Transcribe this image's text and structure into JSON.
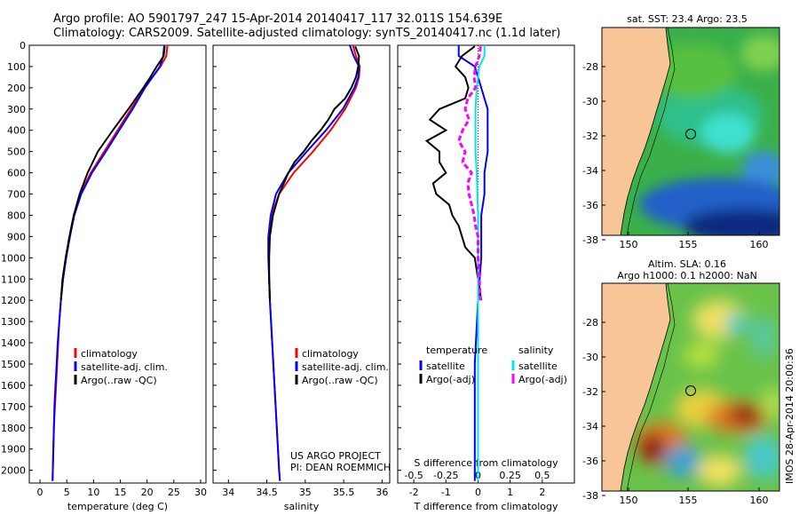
{
  "header": {
    "line1": "Argo profile: AO 5901797_247 15-Apr-2014 20140417_117 32.011S 154.639E",
    "line2": "Climatology: CARS2009. Satellite-adjusted climatology: synTS_20140417.nc (1.1d later)"
  },
  "colors": {
    "climatology": "#ff0000",
    "satellite": "#0000ff",
    "argo": "#000000",
    "sal_satellite": "#00e5ee",
    "sal_argo": "#ff00ff",
    "land": "#f8c596"
  },
  "chart_data": [
    {
      "type": "line",
      "xlabel": "temperature (deg C)",
      "xticks": [
        "0",
        "5",
        "10",
        "15",
        "20",
        "25",
        "30"
      ],
      "xlim": [
        -2,
        31
      ],
      "yticks": [
        "0",
        "100",
        "200",
        "300",
        "400",
        "500",
        "600",
        "700",
        "800",
        "900",
        "1000",
        "1100",
        "1200",
        "1300",
        "1400",
        "1500",
        "1600",
        "1700",
        "1800",
        "1900",
        "2000"
      ],
      "ylim": [
        0,
        2060
      ],
      "legend": [
        "climatology",
        "satellite-adj. clim.",
        "Argo(..raw -QC)"
      ],
      "series": [
        {
          "name": "climatology",
          "depth": [
            0,
            50,
            100,
            150,
            200,
            300,
            400,
            500,
            600,
            700,
            800,
            900,
            1000,
            1100,
            1200,
            1300,
            1400,
            1500,
            1600,
            1700,
            1800,
            1900,
            2000,
            2050
          ],
          "values": [
            23.8,
            23.6,
            22.5,
            21.0,
            19.5,
            17.0,
            14.5,
            12.0,
            9.5,
            7.5,
            6.3,
            5.5,
            4.8,
            4.3,
            3.9,
            3.6,
            3.4,
            3.2,
            3.0,
            2.8,
            2.6,
            2.5,
            2.4,
            2.35
          ]
        },
        {
          "name": "satellite-adj. clim.",
          "depth": [
            0,
            50,
            100,
            150,
            200,
            300,
            400,
            500,
            600,
            700,
            800,
            900,
            1000,
            1100,
            1200,
            1300,
            1400,
            1500,
            1600,
            1700,
            1800,
            1900,
            2000,
            2050
          ],
          "values": [
            23.2,
            23.0,
            22.4,
            21.0,
            19.6,
            17.3,
            14.8,
            12.3,
            9.7,
            7.7,
            6.4,
            5.6,
            4.9,
            4.3,
            3.9,
            3.6,
            3.3,
            3.1,
            2.9,
            2.7,
            2.6,
            2.5,
            2.4,
            2.35
          ]
        },
        {
          "name": "Argo(..raw -QC)",
          "depth": [
            5,
            50,
            100,
            150,
            200,
            300,
            400,
            500,
            600,
            700,
            800,
            900,
            1000,
            1100,
            1200
          ],
          "values": [
            23.3,
            23.1,
            21.8,
            20.6,
            19.3,
            16.5,
            13.6,
            10.8,
            8.9,
            7.4,
            6.3,
            5.5,
            4.8,
            4.2,
            3.9
          ]
        }
      ]
    },
    {
      "type": "line",
      "xlabel": "salinity",
      "xticks": [
        "34",
        "34.5",
        "35",
        "35.5",
        "36"
      ],
      "xlim": [
        33.8,
        36.1
      ],
      "legend": [
        "climatology",
        "satellite-adj. clim.",
        "Argo(..raw -QC)"
      ],
      "annotation": [
        "US ARGO PROJECT",
        "PI: DEAN ROEMMICH"
      ],
      "series": [
        {
          "name": "climatology",
          "depth": [
            0,
            50,
            100,
            150,
            200,
            300,
            400,
            500,
            600,
            700,
            800,
            900,
            1000,
            1100,
            1200,
            1400,
            1600,
            1800,
            2000,
            2050
          ],
          "values": [
            35.62,
            35.66,
            35.71,
            35.7,
            35.66,
            35.52,
            35.33,
            35.1,
            34.85,
            34.66,
            34.56,
            34.52,
            34.52,
            34.53,
            34.54,
            34.57,
            34.6,
            34.63,
            34.66,
            34.67
          ]
        },
        {
          "name": "satellite-adj. clim.",
          "depth": [
            0,
            50,
            100,
            150,
            200,
            300,
            400,
            500,
            600,
            700,
            800,
            900,
            1000,
            1100,
            1200,
            1400,
            1600,
            1800,
            2000,
            2050
          ],
          "values": [
            35.58,
            35.63,
            35.7,
            35.69,
            35.64,
            35.49,
            35.27,
            35.02,
            34.78,
            34.62,
            34.55,
            34.52,
            34.52,
            34.53,
            34.54,
            34.57,
            34.6,
            34.63,
            34.66,
            34.67
          ]
        },
        {
          "name": "Argo(..raw -QC)",
          "depth": [
            5,
            50,
            100,
            150,
            200,
            250,
            300,
            350,
            400,
            450,
            500,
            550,
            600,
            700,
            800,
            900,
            1000,
            1100,
            1200
          ],
          "values": [
            35.65,
            35.7,
            35.69,
            35.66,
            35.6,
            35.52,
            35.38,
            35.3,
            35.2,
            35.08,
            34.98,
            34.86,
            34.78,
            34.66,
            34.58,
            34.54,
            34.53,
            34.53,
            34.54
          ]
        }
      ]
    },
    {
      "type": "line",
      "xlabel": "T difference from climatology",
      "xlabel_top": "S difference from climatology",
      "xticks": [
        "-2",
        "-1",
        "0",
        "1",
        "2"
      ],
      "xticks_top": [
        "-0.5",
        "-0.25",
        "0",
        "0.25",
        "0.5"
      ],
      "xlim": [
        -2.5,
        3.0
      ],
      "legend_titles": [
        "temperature",
        "salinity"
      ],
      "legend": [
        "satellite",
        "Argo(-adj)",
        "satellite",
        "Argo(-adj)"
      ],
      "series": [
        {
          "name": "satellite",
          "depth": [
            0,
            50,
            100,
            150,
            200,
            300,
            400,
            500,
            600,
            700,
            800,
            1000,
            1200,
            1500,
            1800,
            2000,
            2050
          ],
          "values": [
            -0.6,
            -0.6,
            -0.1,
            0.0,
            0.1,
            0.3,
            0.3,
            0.3,
            0.2,
            0.2,
            0.1,
            0.1,
            0.0,
            -0.1,
            -0.1,
            -0.1,
            -0.1
          ]
        },
        {
          "name": "Argo(-adj)",
          "depth": [
            5,
            50,
            100,
            150,
            200,
            250,
            300,
            350,
            400,
            450,
            500,
            550,
            600,
            650,
            700,
            750,
            800,
            850,
            900,
            950,
            1000,
            1100,
            1200
          ],
          "values": [
            -0.1,
            -0.5,
            -0.7,
            -0.4,
            -0.3,
            -0.4,
            -1.2,
            -1.5,
            -1.0,
            -1.6,
            -1.2,
            -1.2,
            -1.0,
            -1.4,
            -1.3,
            -0.9,
            -0.8,
            -0.6,
            -0.5,
            -0.4,
            -0.1,
            0.0,
            0.1
          ]
        },
        {
          "name": "satellite",
          "depth": [
            0,
            50,
            100,
            150,
            200,
            300,
            400,
            500,
            600,
            800,
            1000,
            1200,
            1500,
            1800,
            2000,
            2050
          ],
          "values": [
            0.05,
            0.05,
            0.01,
            0.0,
            -0.01,
            -0.02,
            -0.02,
            -0.02,
            -0.01,
            0.0,
            0.0,
            0.0,
            0.0,
            0.0,
            0.0,
            0.0
          ]
        },
        {
          "name": "Argo(-adj)",
          "depth": [
            5,
            50,
            100,
            150,
            200,
            250,
            300,
            350,
            400,
            450,
            500,
            550,
            600,
            650,
            700,
            750,
            800,
            850,
            900,
            950,
            1000,
            1100,
            1200
          ],
          "values": [
            0.02,
            0.01,
            -0.02,
            -0.03,
            -0.02,
            -0.08,
            -0.1,
            -0.07,
            -0.12,
            -0.15,
            -0.1,
            -0.12,
            -0.05,
            -0.08,
            -0.07,
            -0.05,
            -0.03,
            -0.02,
            0.0,
            0.0,
            0.0,
            0.01,
            0.02
          ]
        }
      ]
    }
  ],
  "maps": {
    "sst": {
      "title": "sat. SST: 23.4 Argo: 23.5",
      "xticks": [
        "150",
        "155",
        "160"
      ],
      "yticks": [
        "-28",
        "-30",
        "-32",
        "-34",
        "-36",
        "-38"
      ]
    },
    "sla": {
      "title1": "Altim. SLA: 0.16",
      "title2": "Argo h1000: 0.1 h2000: NaN",
      "xticks": [
        "150",
        "155",
        "160"
      ],
      "yticks": [
        "-28",
        "-30",
        "-32",
        "-34",
        "-36",
        "-38"
      ]
    }
  },
  "stamp": "IMOS 28-Apr-2014 20:00:36"
}
